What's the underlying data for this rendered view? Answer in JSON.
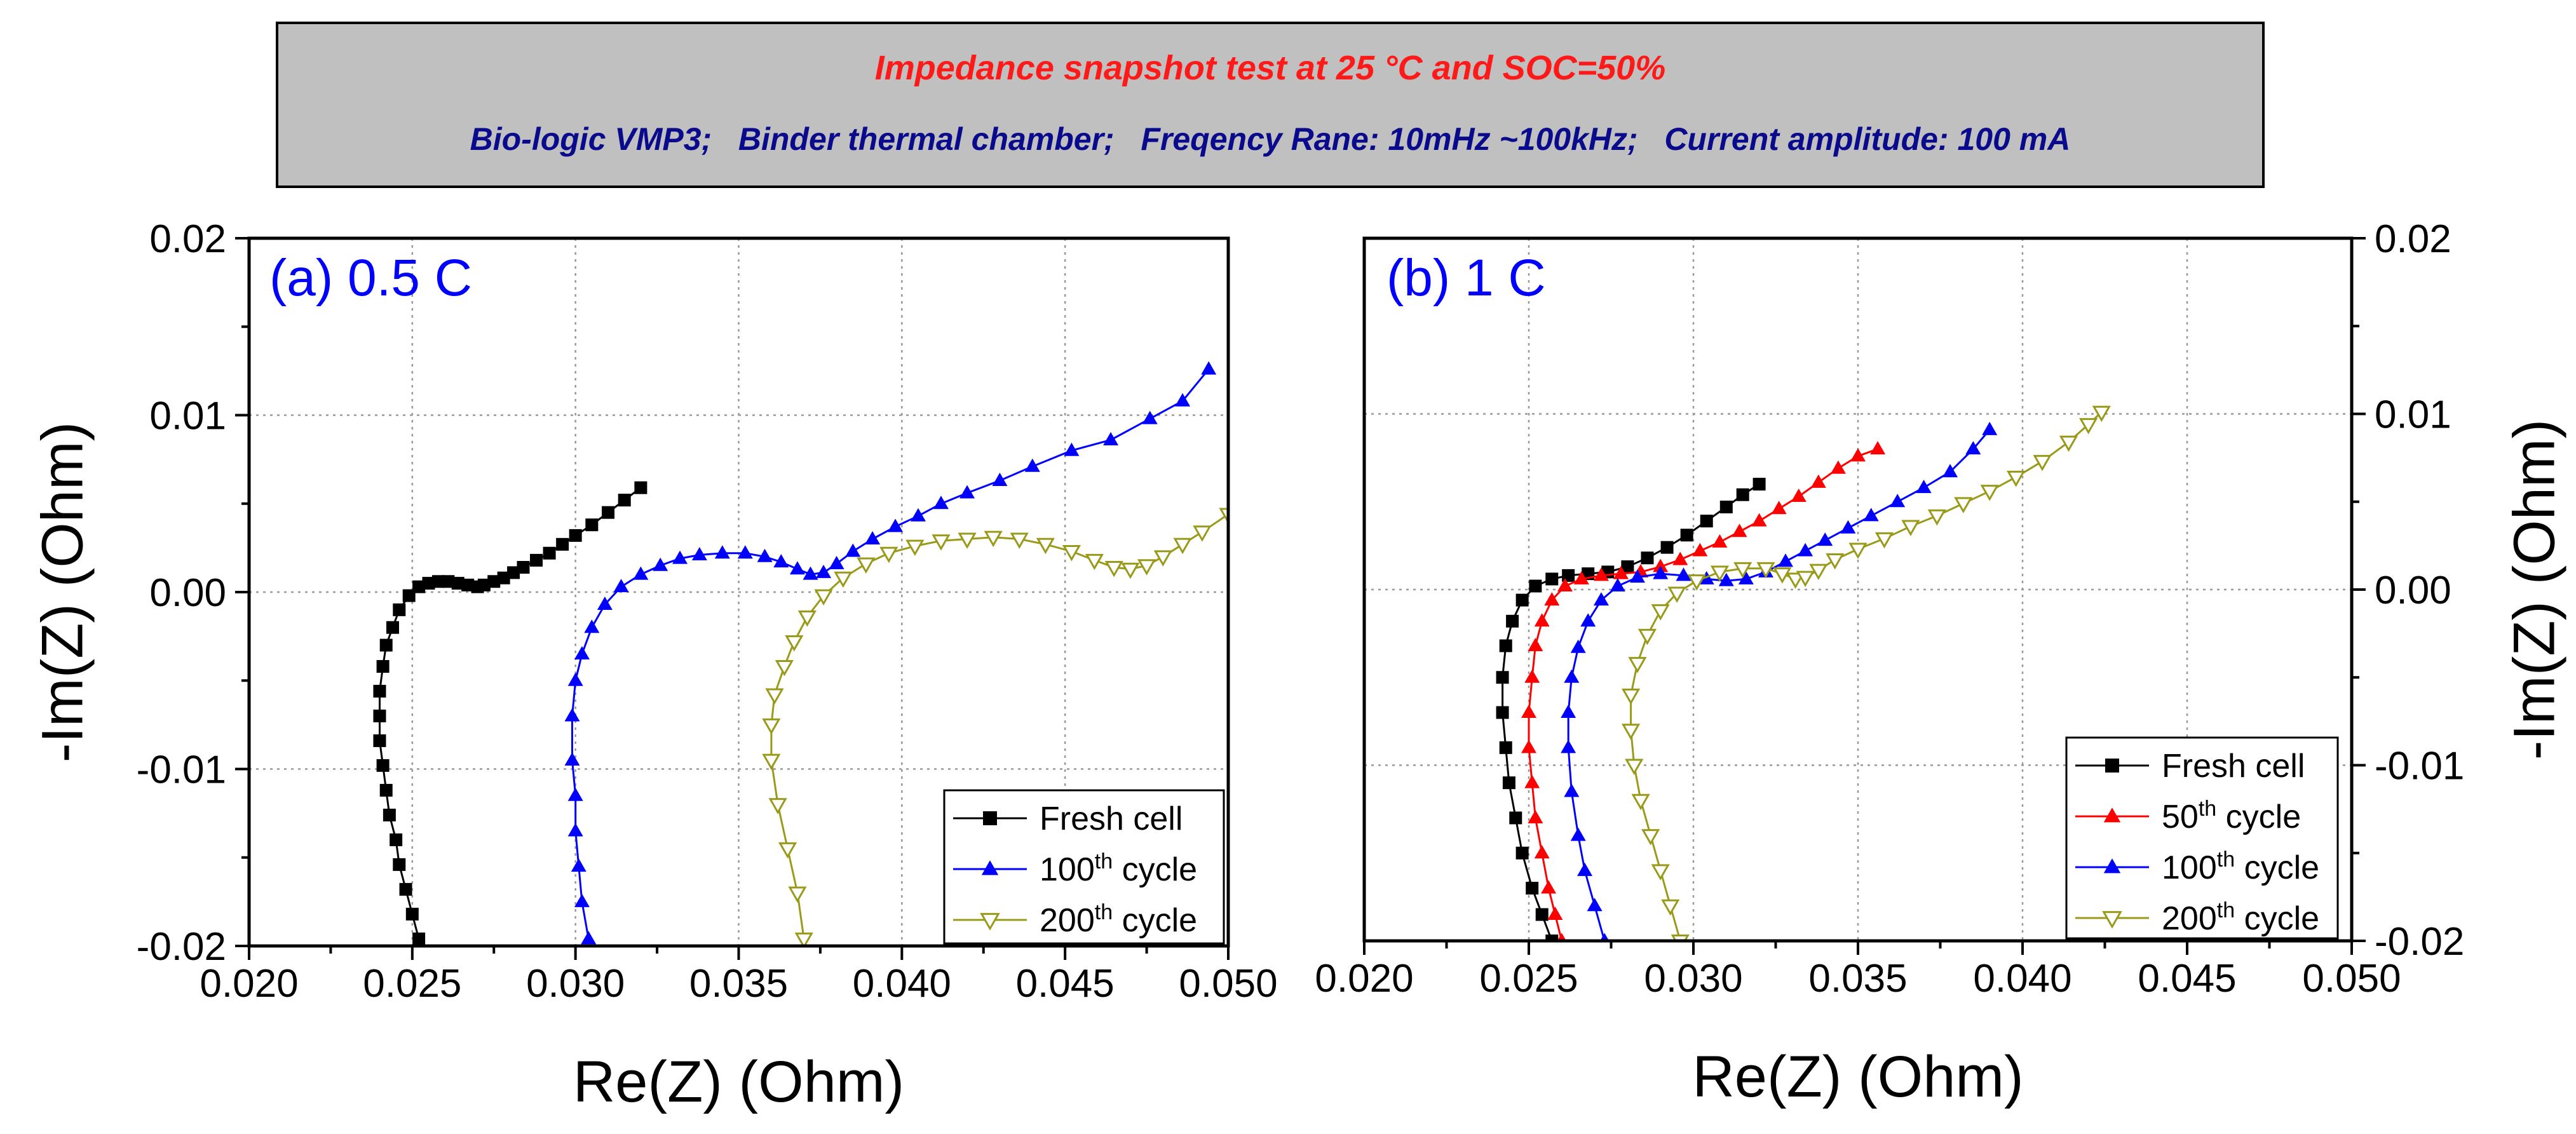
{
  "header": {
    "title": "Impedance snapshot test at 25 °C and SOC=50%",
    "subtitle": "Bio-logic VMP3;   Binder thermal chamber;   Freqency Rane: 10mHz ~100kHz;   Current amplitude: 100 mA",
    "title_color": "#ff1a1a",
    "subtitle_color": "#0a0a8c",
    "box_fill": "#c0c0c0"
  },
  "chart_data": [
    {
      "type": "line",
      "panel_label": "(a) 0.5 C",
      "xlabel": "Re(Z) (Ohm)",
      "ylabel": "-Im(Z) (Ohm)",
      "xlim": [
        0.02,
        0.05
      ],
      "ylim": [
        -0.02,
        0.02
      ],
      "xticks": [
        "0.020",
        "0.025",
        "0.030",
        "0.035",
        "0.040",
        "0.045",
        "0.050"
      ],
      "yticks": [
        "-0.02",
        "-0.01",
        "0.00",
        "0.01",
        "0.02"
      ],
      "grid": true,
      "legend_position": "bottom-right",
      "series": [
        {
          "name": "Fresh cell",
          "base": "Fresh cell",
          "sup": "",
          "tail": "",
          "color": "#000000",
          "marker": "square",
          "points": [
            [
              0.0252,
              -0.0196
            ],
            [
              0.025,
              -0.0182
            ],
            [
              0.0248,
              -0.0168
            ],
            [
              0.0246,
              -0.0154
            ],
            [
              0.0245,
              -0.014
            ],
            [
              0.0243,
              -0.0126
            ],
            [
              0.0242,
              -0.0112
            ],
            [
              0.0241,
              -0.0098
            ],
            [
              0.024,
              -0.0084
            ],
            [
              0.024,
              -0.007
            ],
            [
              0.024,
              -0.0056
            ],
            [
              0.0241,
              -0.0042
            ],
            [
              0.0242,
              -0.003
            ],
            [
              0.0244,
              -0.002
            ],
            [
              0.0246,
              -0.001
            ],
            [
              0.0249,
              -0.0002
            ],
            [
              0.0252,
              0.0003
            ],
            [
              0.0255,
              0.0005
            ],
            [
              0.0258,
              0.0006
            ],
            [
              0.0261,
              0.0006
            ],
            [
              0.0264,
              0.0005
            ],
            [
              0.0267,
              0.0004
            ],
            [
              0.027,
              0.0003
            ],
            [
              0.0272,
              0.0004
            ],
            [
              0.0275,
              0.0006
            ],
            [
              0.0278,
              0.0008
            ],
            [
              0.0281,
              0.0011
            ],
            [
              0.0284,
              0.0014
            ],
            [
              0.0288,
              0.0018
            ],
            [
              0.0292,
              0.0022
            ],
            [
              0.0296,
              0.0027
            ],
            [
              0.03,
              0.0032
            ],
            [
              0.0305,
              0.0038
            ],
            [
              0.031,
              0.0045
            ],
            [
              0.0315,
              0.0052
            ],
            [
              0.032,
              0.0059
            ]
          ]
        },
        {
          "name": "100th cycle",
          "base": "100",
          "sup": "th",
          "tail": " cycle",
          "color": "#0000ff",
          "marker": "triangle-up",
          "points": [
            [
              0.0304,
              -0.0196
            ],
            [
              0.0302,
              -0.0175
            ],
            [
              0.0301,
              -0.0155
            ],
            [
              0.03,
              -0.0135
            ],
            [
              0.03,
              -0.0115
            ],
            [
              0.0299,
              -0.0095
            ],
            [
              0.0299,
              -0.007
            ],
            [
              0.03,
              -0.005
            ],
            [
              0.0302,
              -0.0035
            ],
            [
              0.0305,
              -0.002
            ],
            [
              0.0309,
              -0.0007
            ],
            [
              0.0314,
              0.0003
            ],
            [
              0.032,
              0.001
            ],
            [
              0.0326,
              0.0015
            ],
            [
              0.0332,
              0.0019
            ],
            [
              0.0338,
              0.0021
            ],
            [
              0.0345,
              0.0022
            ],
            [
              0.0352,
              0.0022
            ],
            [
              0.0358,
              0.002
            ],
            [
              0.0363,
              0.0017
            ],
            [
              0.0368,
              0.0013
            ],
            [
              0.0372,
              0.001
            ],
            [
              0.0376,
              0.0011
            ],
            [
              0.038,
              0.0016
            ],
            [
              0.0385,
              0.0023
            ],
            [
              0.0391,
              0.003
            ],
            [
              0.0398,
              0.0037
            ],
            [
              0.0405,
              0.0043
            ],
            [
              0.0412,
              0.005
            ],
            [
              0.042,
              0.0056
            ],
            [
              0.043,
              0.0063
            ],
            [
              0.044,
              0.0071
            ],
            [
              0.0452,
              0.008
            ],
            [
              0.0464,
              0.0086
            ],
            [
              0.0476,
              0.0098
            ],
            [
              0.0486,
              0.0108
            ],
            [
              0.0494,
              0.0126
            ]
          ]
        },
        {
          "name": "200th cycle",
          "base": "200",
          "sup": "th",
          "tail": " cycle",
          "color": "#9a9a1a",
          "marker": "triangle-down-open",
          "points": [
            [
              0.037,
              -0.0196
            ],
            [
              0.0368,
              -0.017
            ],
            [
              0.0365,
              -0.0145
            ],
            [
              0.0362,
              -0.012
            ],
            [
              0.036,
              -0.0095
            ],
            [
              0.036,
              -0.0075
            ],
            [
              0.0361,
              -0.0058
            ],
            [
              0.0364,
              -0.0042
            ],
            [
              0.0367,
              -0.0028
            ],
            [
              0.0371,
              -0.0014
            ],
            [
              0.0376,
              -0.0002
            ],
            [
              0.0382,
              0.0008
            ],
            [
              0.0389,
              0.0016
            ],
            [
              0.0396,
              0.0022
            ],
            [
              0.0404,
              0.0026
            ],
            [
              0.0412,
              0.0029
            ],
            [
              0.042,
              0.003
            ],
            [
              0.0428,
              0.0031
            ],
            [
              0.0436,
              0.003
            ],
            [
              0.0444,
              0.0027
            ],
            [
              0.0452,
              0.0023
            ],
            [
              0.0459,
              0.0018
            ],
            [
              0.0465,
              0.0014
            ],
            [
              0.047,
              0.0013
            ],
            [
              0.0475,
              0.0015
            ],
            [
              0.048,
              0.002
            ],
            [
              0.0486,
              0.0027
            ],
            [
              0.0492,
              0.0034
            ],
            [
              0.05,
              0.0044
            ]
          ]
        }
      ]
    },
    {
      "type": "line",
      "panel_label": "(b) 1 C",
      "xlabel": "Re(Z) (Ohm)",
      "ylabel": "-Im(Z) (Ohm)",
      "xlim": [
        0.02,
        0.05
      ],
      "ylim": [
        -0.02,
        0.02
      ],
      "xticks": [
        "0.020",
        "0.025",
        "0.030",
        "0.035",
        "0.040",
        "0.045",
        "0.050"
      ],
      "yticks": [
        "-0.02",
        "-0.01",
        "0.00",
        "0.01",
        "0.02"
      ],
      "grid": true,
      "legend_position": "bottom-right",
      "series": [
        {
          "name": "Fresh cell",
          "base": "Fresh cell",
          "sup": "",
          "tail": "",
          "color": "#000000",
          "marker": "square",
          "points": [
            [
              0.0257,
              -0.02
            ],
            [
              0.0254,
              -0.0185
            ],
            [
              0.0251,
              -0.017
            ],
            [
              0.0248,
              -0.015
            ],
            [
              0.0246,
              -0.013
            ],
            [
              0.0244,
              -0.011
            ],
            [
              0.0243,
              -0.009
            ],
            [
              0.0242,
              -0.007
            ],
            [
              0.0242,
              -0.005
            ],
            [
              0.0243,
              -0.0032
            ],
            [
              0.0245,
              -0.0018
            ],
            [
              0.0248,
              -0.0006
            ],
            [
              0.0252,
              0.0002
            ],
            [
              0.0257,
              0.0006
            ],
            [
              0.0262,
              0.0008
            ],
            [
              0.0268,
              0.0009
            ],
            [
              0.0274,
              0.001
            ],
            [
              0.028,
              0.0013
            ],
            [
              0.0286,
              0.0018
            ],
            [
              0.0292,
              0.0024
            ],
            [
              0.0298,
              0.0031
            ],
            [
              0.0304,
              0.0039
            ],
            [
              0.031,
              0.0047
            ],
            [
              0.0315,
              0.0054
            ],
            [
              0.032,
              0.006
            ]
          ]
        },
        {
          "name": "50th cycle",
          "base": "50",
          "sup": "th",
          "tail": " cycle",
          "color": "#ff0000",
          "marker": "triangle-up",
          "points": [
            [
              0.026,
              -0.02
            ],
            [
              0.0258,
              -0.0185
            ],
            [
              0.0256,
              -0.017
            ],
            [
              0.0254,
              -0.015
            ],
            [
              0.0252,
              -0.013
            ],
            [
              0.0251,
              -0.011
            ],
            [
              0.025,
              -0.009
            ],
            [
              0.025,
              -0.007
            ],
            [
              0.0251,
              -0.005
            ],
            [
              0.0252,
              -0.0032
            ],
            [
              0.0254,
              -0.0018
            ],
            [
              0.0257,
              -0.0006
            ],
            [
              0.0261,
              0.0002
            ],
            [
              0.0266,
              0.0006
            ],
            [
              0.0272,
              0.0008
            ],
            [
              0.0278,
              0.0009
            ],
            [
              0.0284,
              0.001
            ],
            [
              0.029,
              0.0013
            ],
            [
              0.0296,
              0.0017
            ],
            [
              0.0302,
              0.0022
            ],
            [
              0.0308,
              0.0027
            ],
            [
              0.0314,
              0.0033
            ],
            [
              0.032,
              0.0039
            ],
            [
              0.0326,
              0.0046
            ],
            [
              0.0332,
              0.0053
            ],
            [
              0.0338,
              0.0061
            ],
            [
              0.0344,
              0.0069
            ],
            [
              0.035,
              0.0076
            ],
            [
              0.0356,
              0.008
            ]
          ]
        },
        {
          "name": "100th cycle",
          "base": "100",
          "sup": "th",
          "tail": " cycle",
          "color": "#0000ff",
          "marker": "triangle-up",
          "points": [
            [
              0.0273,
              -0.02
            ],
            [
              0.027,
              -0.018
            ],
            [
              0.0267,
              -0.016
            ],
            [
              0.0265,
              -0.014
            ],
            [
              0.0263,
              -0.0115
            ],
            [
              0.0262,
              -0.009
            ],
            [
              0.0262,
              -0.007
            ],
            [
              0.0263,
              -0.005
            ],
            [
              0.0265,
              -0.0033
            ],
            [
              0.0268,
              -0.0018
            ],
            [
              0.0272,
              -0.0006
            ],
            [
              0.0277,
              0.0002
            ],
            [
              0.0283,
              0.0007
            ],
            [
              0.029,
              0.0009
            ],
            [
              0.0297,
              0.0008
            ],
            [
              0.0304,
              0.0006
            ],
            [
              0.031,
              0.0005
            ],
            [
              0.0316,
              0.0006
            ],
            [
              0.0322,
              0.001
            ],
            [
              0.0328,
              0.0016
            ],
            [
              0.0334,
              0.0022
            ],
            [
              0.034,
              0.0028
            ],
            [
              0.0347,
              0.0035
            ],
            [
              0.0354,
              0.0042
            ],
            [
              0.0362,
              0.005
            ],
            [
              0.037,
              0.0058
            ],
            [
              0.0378,
              0.0067
            ],
            [
              0.0385,
              0.008
            ],
            [
              0.039,
              0.0091
            ]
          ]
        },
        {
          "name": "200th cycle",
          "base": "200",
          "sup": "th",
          "tail": " cycle",
          "color": "#9a9a1a",
          "marker": "triangle-down-open",
          "points": [
            [
              0.0296,
              -0.02
            ],
            [
              0.0293,
              -0.018
            ],
            [
              0.029,
              -0.016
            ],
            [
              0.0287,
              -0.014
            ],
            [
              0.0284,
              -0.012
            ],
            [
              0.0282,
              -0.01
            ],
            [
              0.0281,
              -0.008
            ],
            [
              0.0281,
              -0.006
            ],
            [
              0.0283,
              -0.0042
            ],
            [
              0.0286,
              -0.0026
            ],
            [
              0.029,
              -0.0012
            ],
            [
              0.0295,
              -0.0002
            ],
            [
              0.0301,
              0.0005
            ],
            [
              0.0308,
              0.001
            ],
            [
              0.0315,
              0.0012
            ],
            [
              0.0322,
              0.0012
            ],
            [
              0.0327,
              0.0009
            ],
            [
              0.0331,
              0.0006
            ],
            [
              0.0334,
              0.0007
            ],
            [
              0.0338,
              0.0011
            ],
            [
              0.0343,
              0.0017
            ],
            [
              0.035,
              0.0023
            ],
            [
              0.0358,
              0.0029
            ],
            [
              0.0366,
              0.0036
            ],
            [
              0.0374,
              0.0042
            ],
            [
              0.0382,
              0.0049
            ],
            [
              0.039,
              0.0056
            ],
            [
              0.0398,
              0.0064
            ],
            [
              0.0406,
              0.0073
            ],
            [
              0.0414,
              0.0084
            ],
            [
              0.042,
              0.0094
            ],
            [
              0.0424,
              0.0101
            ]
          ]
        }
      ]
    }
  ]
}
